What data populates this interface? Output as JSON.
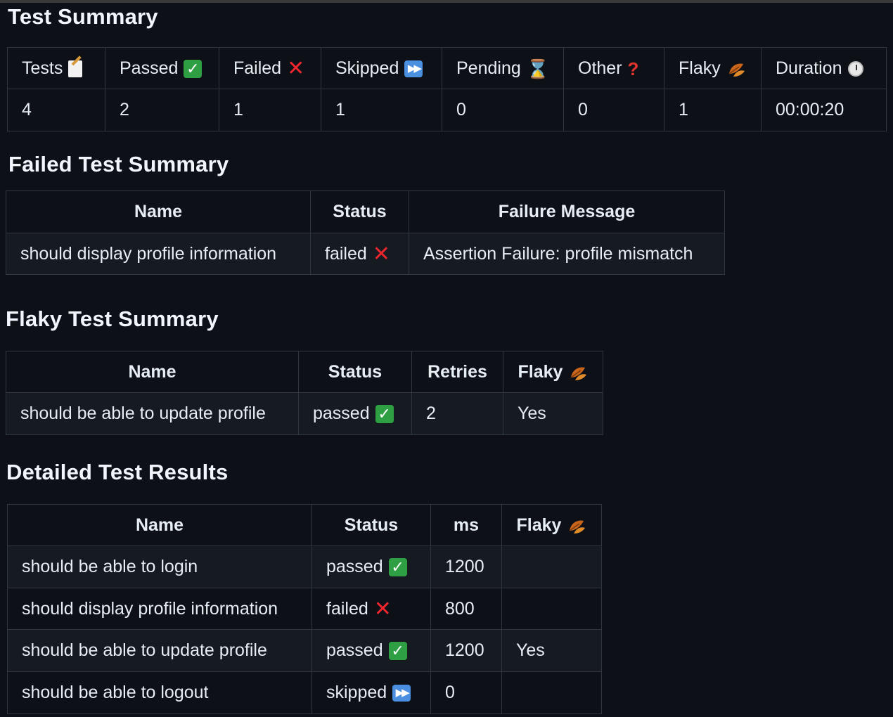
{
  "summary": {
    "title": "Test Summary",
    "headers": {
      "tests": "Tests",
      "passed": "Passed",
      "failed": "Failed",
      "skipped": "Skipped",
      "pending": "Pending",
      "other": "Other",
      "flaky": "Flaky",
      "duration": "Duration"
    },
    "icons": {
      "tests": "memo-icon",
      "passed": "check-mark-icon",
      "failed": "cross-mark-icon",
      "skipped": "skip-forward-icon",
      "pending": "hourglass-icon",
      "other": "question-mark-icon",
      "flaky": "fallen-leaf-icon",
      "duration": "stopwatch-icon"
    },
    "values": {
      "tests": "4",
      "passed": "2",
      "failed": "1",
      "skipped": "1",
      "pending": "0",
      "other": "0",
      "flaky": "1",
      "duration": "00:00:20"
    }
  },
  "failed": {
    "title": "Failed Test Summary",
    "headers": {
      "name": "Name",
      "status": "Status",
      "message": "Failure Message"
    },
    "rows": [
      {
        "name": "should display profile information",
        "status": "failed",
        "message": "Assertion Failure: profile mismatch"
      }
    ]
  },
  "flaky": {
    "title": "Flaky Test Summary",
    "headers": {
      "name": "Name",
      "status": "Status",
      "retries": "Retries",
      "flaky": "Flaky"
    },
    "rows": [
      {
        "name": "should be able to update profile",
        "status": "passed",
        "retries": "2",
        "flaky": "Yes"
      }
    ]
  },
  "detailed": {
    "title": "Detailed Test Results",
    "headers": {
      "name": "Name",
      "status": "Status",
      "ms": "ms",
      "flaky": "Flaky"
    },
    "rows": [
      {
        "name": "should be able to login",
        "status": "passed",
        "ms": "1200",
        "flaky": ""
      },
      {
        "name": "should display profile information",
        "status": "failed",
        "ms": "800",
        "flaky": ""
      },
      {
        "name": "should be able to update profile",
        "status": "passed",
        "ms": "1200",
        "flaky": "Yes"
      },
      {
        "name": "should be able to logout",
        "status": "skipped",
        "ms": "0",
        "flaky": ""
      }
    ]
  },
  "colors": {
    "background": "#0d1117",
    "row_alt": "#161b22",
    "border": "#30363d",
    "text": "#e6edf3",
    "check": "#2ea043",
    "cross": "#f0262f",
    "skip": "#4a8fe0"
  }
}
